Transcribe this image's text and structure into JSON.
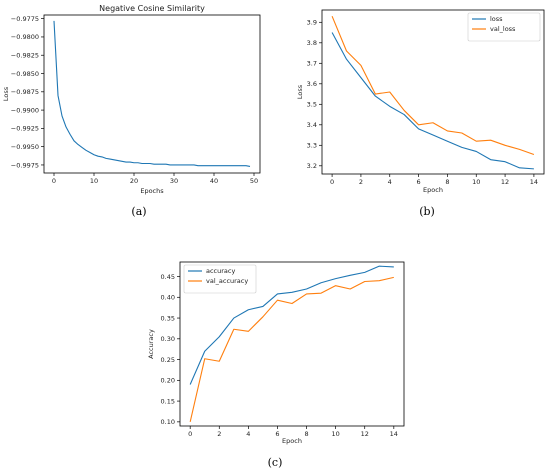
{
  "colors": {
    "series1": "#1f77b4",
    "series2": "#ff7f0e"
  },
  "panels": [
    {
      "label": "(a)",
      "chart_data": {
        "type": "line",
        "title": "Negative Cosine Similarity",
        "xlabel": "Epochs",
        "ylabel": "Loss",
        "xlim": [
          -2.5,
          51.5
        ],
        "ylim": [
          -0.9986,
          -0.977
        ],
        "xticks": [
          0,
          10,
          20,
          30,
          40,
          50
        ],
        "xtick_labels": [
          "0",
          "10",
          "20",
          "30",
          "40",
          "50"
        ],
        "yticks": [
          -0.9775,
          -0.98,
          -0.9825,
          -0.985,
          -0.9875,
          -0.99,
          -0.9925,
          -0.995,
          -0.9975
        ],
        "ytick_labels": [
          "−0.9775",
          "−0.9800",
          "−0.9825",
          "−0.9850",
          "−0.9875",
          "−0.9900",
          "−0.9925",
          "−0.9950",
          "−0.9975"
        ],
        "legend": "none",
        "series": [
          {
            "x": [
              0,
              1,
              2,
              3,
              4,
              5,
              6,
              7,
              8,
              9,
              10,
              11,
              12,
              13,
              14,
              15,
              16,
              17,
              18,
              19,
              20,
              21,
              22,
              23,
              24,
              25,
              26,
              27,
              28,
              29,
              30,
              31,
              32,
              33,
              34,
              35,
              36,
              37,
              38,
              39,
              40,
              41,
              42,
              43,
              44,
              45,
              46,
              47,
              48,
              49
            ],
            "values": [
              -0.9778,
              -0.988,
              -0.9908,
              -0.9923,
              -0.9933,
              -0.9942,
              -0.9947,
              -0.9951,
              -0.9955,
              -0.9958,
              -0.9961,
              -0.9963,
              -0.9964,
              -0.9966,
              -0.9967,
              -0.9968,
              -0.9969,
              -0.997,
              -0.9971,
              -0.9971,
              -0.9972,
              -0.9972,
              -0.9973,
              -0.9973,
              -0.9973,
              -0.9974,
              -0.9974,
              -0.9974,
              -0.9974,
              -0.9975,
              -0.9975,
              -0.9975,
              -0.9975,
              -0.9975,
              -0.9975,
              -0.9975,
              -0.9976,
              -0.9976,
              -0.9976,
              -0.9976,
              -0.9976,
              -0.9976,
              -0.9976,
              -0.9976,
              -0.9976,
              -0.9976,
              -0.9976,
              -0.9976,
              -0.9976,
              -0.9977
            ]
          }
        ]
      }
    },
    {
      "label": "(b)",
      "chart_data": {
        "type": "line",
        "title": "",
        "xlabel": "Epoch",
        "ylabel": "Loss",
        "xlim": [
          -0.7,
          14.7
        ],
        "ylim": [
          3.16,
          3.96
        ],
        "xticks": [
          0,
          2,
          4,
          6,
          8,
          10,
          12,
          14
        ],
        "xtick_labels": [
          "0",
          "2",
          "4",
          "6",
          "8",
          "10",
          "12",
          "14"
        ],
        "yticks": [
          3.2,
          3.3,
          3.4,
          3.5,
          3.6,
          3.7,
          3.8,
          3.9
        ],
        "ytick_labels": [
          "3.2",
          "3.3",
          "3.4",
          "3.5",
          "3.6",
          "3.7",
          "3.8",
          "3.9"
        ],
        "legend": "top-right",
        "series": [
          {
            "name": "loss",
            "x": [
              0,
              1,
              2,
              3,
              4,
              5,
              6,
              7,
              8,
              9,
              10,
              11,
              12,
              13,
              14
            ],
            "values": [
              3.85,
              3.72,
              3.63,
              3.54,
              3.49,
              3.45,
              3.38,
              3.35,
              3.32,
              3.29,
              3.27,
              3.23,
              3.22,
              3.19,
              3.185
            ]
          },
          {
            "name": "val_loss",
            "x": [
              0,
              1,
              2,
              3,
              4,
              5,
              6,
              7,
              8,
              9,
              10,
              11,
              12,
              13,
              14
            ],
            "values": [
              3.93,
              3.76,
              3.69,
              3.55,
              3.56,
              3.47,
              3.4,
              3.41,
              3.37,
              3.36,
              3.32,
              3.325,
              3.3,
              3.28,
              3.255
            ]
          }
        ]
      }
    },
    {
      "label": "(c)",
      "chart_data": {
        "type": "line",
        "title": "",
        "xlabel": "Epoch",
        "ylabel": "Accuracy",
        "xlim": [
          -0.7,
          14.7
        ],
        "ylim": [
          0.09,
          0.485
        ],
        "xticks": [
          0,
          2,
          4,
          6,
          8,
          10,
          12,
          14
        ],
        "xtick_labels": [
          "0",
          "2",
          "4",
          "6",
          "8",
          "10",
          "12",
          "14"
        ],
        "yticks": [
          0.1,
          0.15,
          0.2,
          0.25,
          0.3,
          0.35,
          0.4,
          0.45
        ],
        "ytick_labels": [
          "0.10",
          "0.15",
          "0.20",
          "0.25",
          "0.30",
          "0.35",
          "0.40",
          "0.45"
        ],
        "legend": "top-left",
        "series": [
          {
            "name": "accuracy",
            "x": [
              0,
              1,
              2,
              3,
              4,
              5,
              6,
              7,
              8,
              9,
              10,
              11,
              12,
              13,
              14
            ],
            "values": [
              0.19,
              0.27,
              0.305,
              0.35,
              0.37,
              0.378,
              0.408,
              0.412,
              0.42,
              0.435,
              0.445,
              0.453,
              0.46,
              0.475,
              0.473
            ]
          },
          {
            "name": "val_accuracy",
            "x": [
              0,
              1,
              2,
              3,
              4,
              5,
              6,
              7,
              8,
              9,
              10,
              11,
              12,
              13,
              14
            ],
            "values": [
              0.1,
              0.252,
              0.246,
              0.323,
              0.318,
              0.353,
              0.393,
              0.385,
              0.408,
              0.41,
              0.428,
              0.42,
              0.438,
              0.44,
              0.448
            ]
          }
        ]
      }
    }
  ]
}
